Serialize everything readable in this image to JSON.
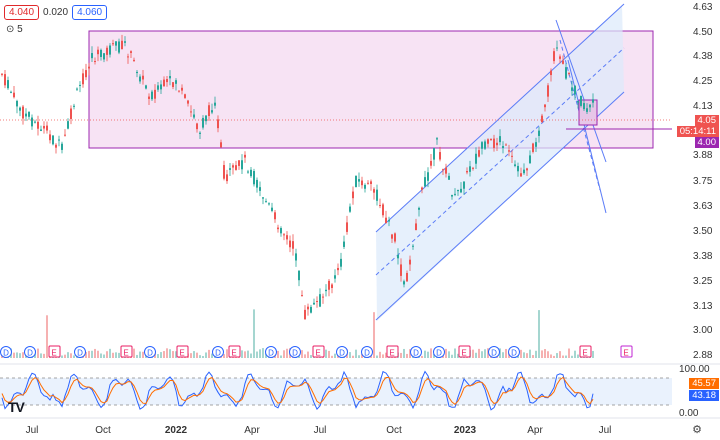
{
  "header": {
    "bid": "4.040",
    "spread": "0.020",
    "ask": "4.060"
  },
  "indicator": {
    "label": "5",
    "eye": "⊙"
  },
  "price_axis": [
    "4.63",
    "4.50",
    "4.38",
    "4.25",
    "4.13",
    "4.05",
    "3.88",
    "3.75",
    "3.63",
    "3.50",
    "3.38",
    "3.25",
    "3.13",
    "3.00",
    "2.88"
  ],
  "price_tags": {
    "last": "4.05",
    "countdown": "05:14:11",
    "level": "4.00"
  },
  "time_axis": [
    "Jul",
    "Oct",
    "2022",
    "Apr",
    "Jul",
    "Oct",
    "2023",
    "Apr",
    "Jul"
  ],
  "osc_axis": [
    "100.00",
    "0.00"
  ],
  "osc_tags": {
    "k": "45.57",
    "d": "43.18"
  },
  "events": [
    "D",
    "D",
    "E",
    "D",
    "E",
    "D",
    "E",
    "D",
    "E",
    "D",
    "D",
    "E",
    "D",
    "D",
    "E",
    "D",
    "D",
    "E",
    "D",
    "D",
    "E",
    "E"
  ],
  "logo": "TV",
  "colors": {
    "up": "#26a69a",
    "down": "#ef5350",
    "rect_fill": "#f3d7f0",
    "rect_stroke": "#9c27b0",
    "channel": "#5b7cf7"
  }
}
